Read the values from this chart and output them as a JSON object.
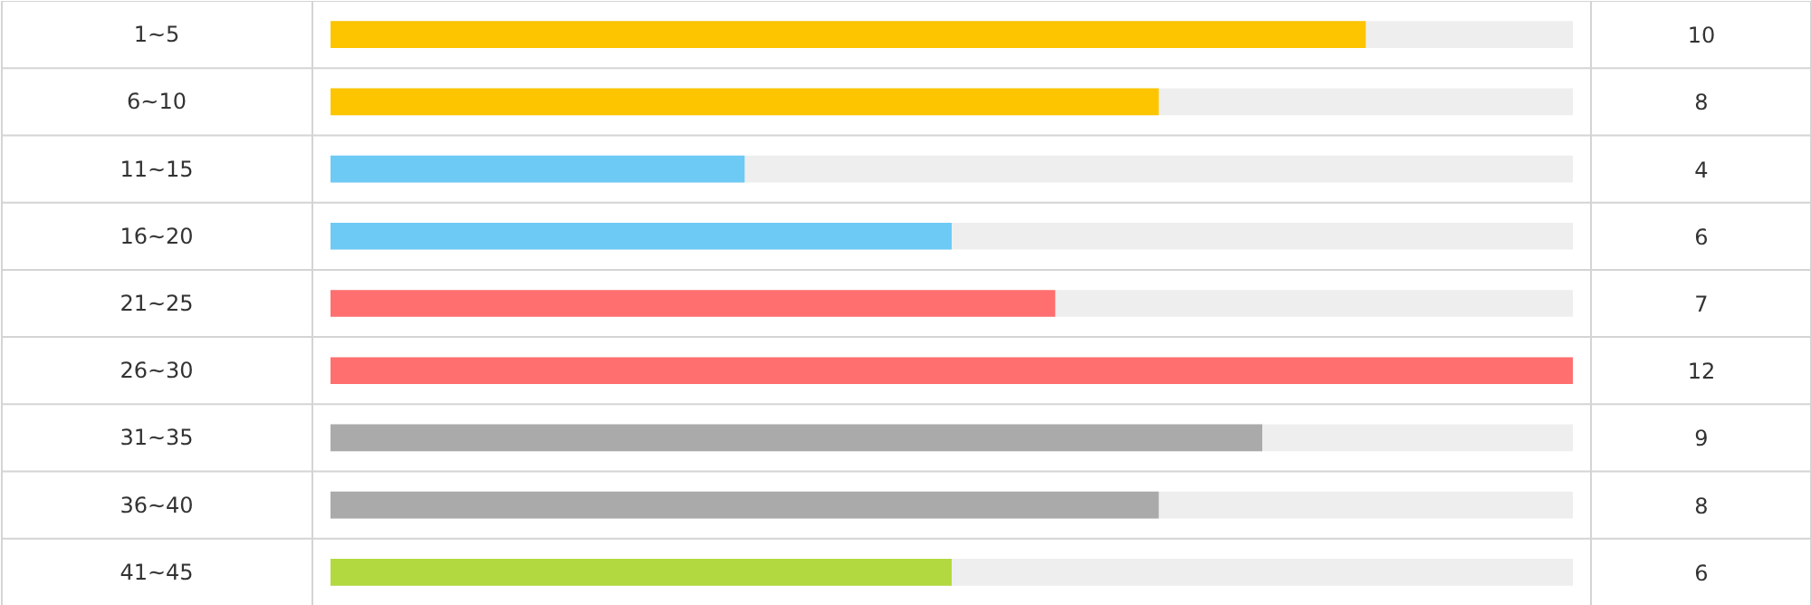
{
  "chart_data": {
    "type": "bar",
    "orientation": "horizontal",
    "categories": [
      "1~5",
      "6~10",
      "11~15",
      "16~20",
      "21~25",
      "26~30",
      "31~35",
      "36~40",
      "41~45"
    ],
    "values": [
      10,
      8,
      4,
      6,
      7,
      12,
      9,
      8,
      6
    ],
    "colors": [
      "#fcc500",
      "#fcc500",
      "#6ccaf5",
      "#6ccaf5",
      "#ff6f6f",
      "#ff6f6f",
      "#aaaaaa",
      "#aaaaaa",
      "#b2d940"
    ],
    "bands": [
      {
        "axis": "x",
        "from": 0,
        "to": 12,
        "color": "#eeeeee"
      }
    ],
    "data_labels": true
  }
}
